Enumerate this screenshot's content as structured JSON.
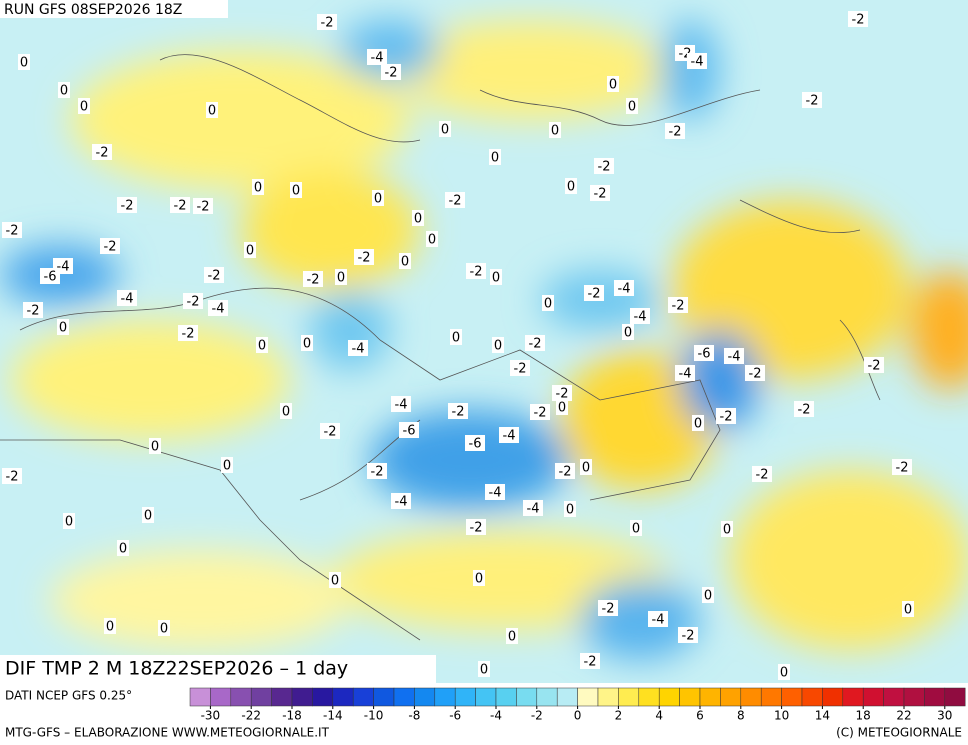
{
  "header": {
    "run": "RUN GFS 08SEP2026 18Z"
  },
  "title": "DIF TMP 2 M 18Z22SEP2026 – 1 day",
  "contour_labels": [
    "-2",
    "-2",
    "-4",
    "-2",
    "-2",
    "-4",
    "0",
    "0",
    "0",
    "0",
    "0",
    "0",
    "-2",
    "0",
    "0",
    "-2",
    "-2",
    "0",
    "-2",
    "0",
    "-2",
    "0",
    "0",
    "0",
    "-2",
    "-2",
    "-2",
    "-2",
    "0",
    "0",
    "-2",
    "-2",
    "0",
    "-2",
    "0",
    "-4",
    "-6",
    "-2",
    "0",
    "-2",
    "-2",
    "0",
    "-4",
    "-2",
    "-4",
    "0",
    "-2",
    "-4",
    "-2",
    "-2",
    "-4",
    "0",
    "0",
    "-2",
    "0",
    "0",
    "0",
    "-4",
    "0",
    "-2",
    "-6",
    "-4",
    "-2",
    "-4",
    "-2",
    "-2",
    "-2",
    "0",
    "0",
    "-4",
    "-2",
    "-2",
    "-2",
    "-6",
    "-2",
    "-2",
    "0",
    "-6",
    "-4",
    "0",
    "0",
    "-2",
    "-2",
    "0",
    "-2",
    "-2",
    "-2",
    "-4",
    "-4",
    "-4",
    "0",
    "0",
    "0",
    "-2",
    "0",
    "0",
    "0",
    "0",
    "0",
    "0",
    "-2",
    "-4",
    "0",
    "0",
    "0",
    "-2",
    "0",
    "-2",
    "0",
    "0"
  ],
  "legend": {
    "source": "DATI NCEP GFS 0.25°",
    "colors": [
      "#c890d8",
      "#a868c8",
      "#8850b0",
      "#7040a0",
      "#582890",
      "#401c90",
      "#2818a0",
      "#1c28c0",
      "#1840d8",
      "#1058e0",
      "#1070f0",
      "#1488f0",
      "#20a0f8",
      "#30b4f8",
      "#44c4f4",
      "#58d0f0",
      "#78dcf0",
      "#98e4f0",
      "#b8ecf4",
      "#fffac0",
      "#fff488",
      "#ffec50",
      "#ffe020",
      "#ffd400",
      "#ffc400",
      "#ffb400",
      "#ffa200",
      "#ff8c00",
      "#ff7800",
      "#ff6000",
      "#f84800",
      "#f03000",
      "#e01820",
      "#d01030",
      "#c01040",
      "#b01040",
      "#a00c40",
      "#900c40"
    ],
    "ticks": [
      -30,
      -22,
      -18,
      -14,
      -10,
      -8,
      -6,
      -4,
      -2,
      0,
      2,
      4,
      6,
      8,
      10,
      14,
      18,
      22,
      30
    ]
  },
  "footer": {
    "left": "MTG-GFS – ELABORAZIONE WWW.METEOGIORNALE.IT",
    "right": "(C) METEOGIORNALE"
  }
}
